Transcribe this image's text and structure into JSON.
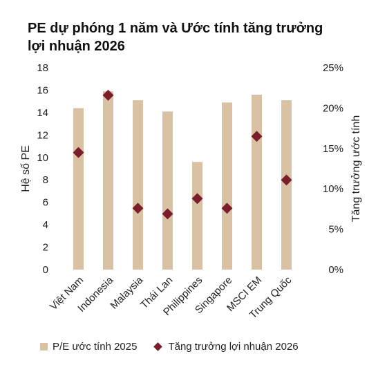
{
  "title_lines": [
    "PE dự phóng 1 năm và Ước tính tăng trưởng",
    "lợi nhuận 2026"
  ],
  "chart_data": {
    "type": "bar",
    "categories": [
      "Việt Nam",
      "Indonesia",
      "Malaysia",
      "Thái Lan",
      "Philippines",
      "Singapore",
      "MSCI EM",
      "Trung Quốc"
    ],
    "series": [
      {
        "name": "P/E ước tính 2025",
        "type": "bar",
        "axis": "left",
        "color": "#d9c1a3",
        "values": [
          14.4,
          15.9,
          15.1,
          14.1,
          9.6,
          14.9,
          15.6,
          15.1
        ]
      },
      {
        "name": "Tăng trưởng lợi nhuận 2026",
        "type": "scatter",
        "marker": "diamond",
        "axis": "right",
        "color": "#7b1e2b",
        "values": [
          14.5,
          21.6,
          7.6,
          6.9,
          8.8,
          7.6,
          16.5,
          11.1
        ]
      }
    ],
    "ylabel": "Hệ số PE",
    "ylim": [
      0,
      18
    ],
    "yticks": [
      "0",
      "2",
      "4",
      "6",
      "8",
      "10",
      "12",
      "14",
      "16",
      "18"
    ],
    "y2label": "Tăng trưởng ước tính",
    "y2lim": [
      0,
      25
    ],
    "y2ticks": [
      "0%",
      "5%",
      "10%",
      "15%",
      "20%",
      "25%"
    ],
    "grid": false,
    "legend_position": "bottom"
  }
}
